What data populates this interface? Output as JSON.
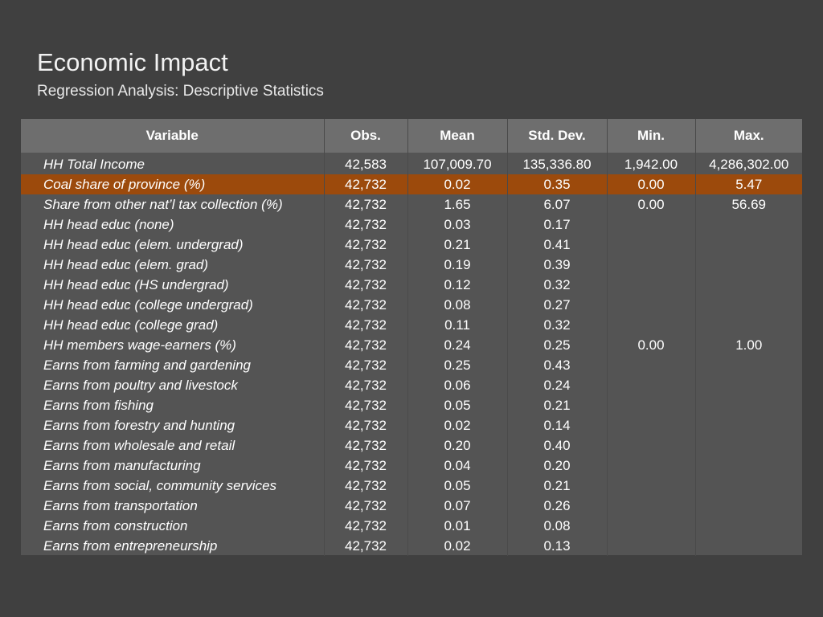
{
  "header": {
    "title": "Economic Impact",
    "subtitle": "Regression Analysis: Descriptive Statistics"
  },
  "colors": {
    "background": "#404040",
    "table_body": "#545454",
    "table_header": "#6e6e6e",
    "highlight_row": "#9c4a0c"
  },
  "table": {
    "columns": [
      "Variable",
      "Obs.",
      "Mean",
      "Std. Dev.",
      "Min.",
      "Max."
    ],
    "rows": [
      {
        "variable": "HH Total Income",
        "obs": "42,583",
        "mean": "107,009.70",
        "sd": "135,336.80",
        "min": "1,942.00",
        "max": "4,286,302.00"
      },
      {
        "variable": "Coal share of province (%)",
        "obs": "42,732",
        "mean": "0.02",
        "sd": "0.35",
        "min": "0.00",
        "max": "5.47"
      },
      {
        "variable": "Share from other nat’l tax collection (%)",
        "obs": "42,732",
        "mean": "1.65",
        "sd": "6.07",
        "min": "0.00",
        "max": "56.69"
      },
      {
        "variable": "HH head educ (none)",
        "obs": "42,732",
        "mean": "0.03",
        "sd": "0.17",
        "min": "",
        "max": ""
      },
      {
        "variable": "HH head educ (elem. undergrad)",
        "obs": "42,732",
        "mean": "0.21",
        "sd": "0.41",
        "min": "",
        "max": ""
      },
      {
        "variable": "HH head educ (elem. grad)",
        "obs": "42,732",
        "mean": "0.19",
        "sd": "0.39",
        "min": "",
        "max": ""
      },
      {
        "variable": "HH head educ (HS undergrad)",
        "obs": "42,732",
        "mean": "0.12",
        "sd": "0.32",
        "min": "",
        "max": ""
      },
      {
        "variable": "HH head educ (college undergrad)",
        "obs": "42,732",
        "mean": "0.08",
        "sd": "0.27",
        "min": "",
        "max": ""
      },
      {
        "variable": "HH head educ (college grad)",
        "obs": "42,732",
        "mean": "0.11",
        "sd": "0.32",
        "min": "",
        "max": ""
      },
      {
        "variable": "HH members wage-earners (%)",
        "obs": "42,732",
        "mean": "0.24",
        "sd": "0.25",
        "min": "0.00",
        "max": "1.00"
      },
      {
        "variable": "Earns from farming and gardening",
        "obs": "42,732",
        "mean": "0.25",
        "sd": "0.43",
        "min": "",
        "max": ""
      },
      {
        "variable": "Earns from poultry and livestock",
        "obs": "42,732",
        "mean": "0.06",
        "sd": "0.24",
        "min": "",
        "max": ""
      },
      {
        "variable": "Earns from fishing",
        "obs": "42,732",
        "mean": "0.05",
        "sd": "0.21",
        "min": "",
        "max": ""
      },
      {
        "variable": "Earns from forestry and hunting",
        "obs": "42,732",
        "mean": "0.02",
        "sd": "0.14",
        "min": "",
        "max": ""
      },
      {
        "variable": "Earns from wholesale and retail",
        "obs": "42,732",
        "mean": "0.20",
        "sd": "0.40",
        "min": "",
        "max": ""
      },
      {
        "variable": "Earns from manufacturing",
        "obs": "42,732",
        "mean": "0.04",
        "sd": "0.20",
        "min": "",
        "max": ""
      },
      {
        "variable": "Earns from social, community services",
        "obs": "42,732",
        "mean": "0.05",
        "sd": "0.21",
        "min": "",
        "max": ""
      },
      {
        "variable": "Earns from transportation",
        "obs": "42,732",
        "mean": "0.07",
        "sd": "0.26",
        "min": "",
        "max": ""
      },
      {
        "variable": "Earns from construction",
        "obs": "42,732",
        "mean": "0.01",
        "sd": "0.08",
        "min": "",
        "max": ""
      },
      {
        "variable": "Earns from entrepreneurship",
        "obs": "42,732",
        "mean": "0.02",
        "sd": "0.13",
        "min": "",
        "max": ""
      }
    ]
  }
}
